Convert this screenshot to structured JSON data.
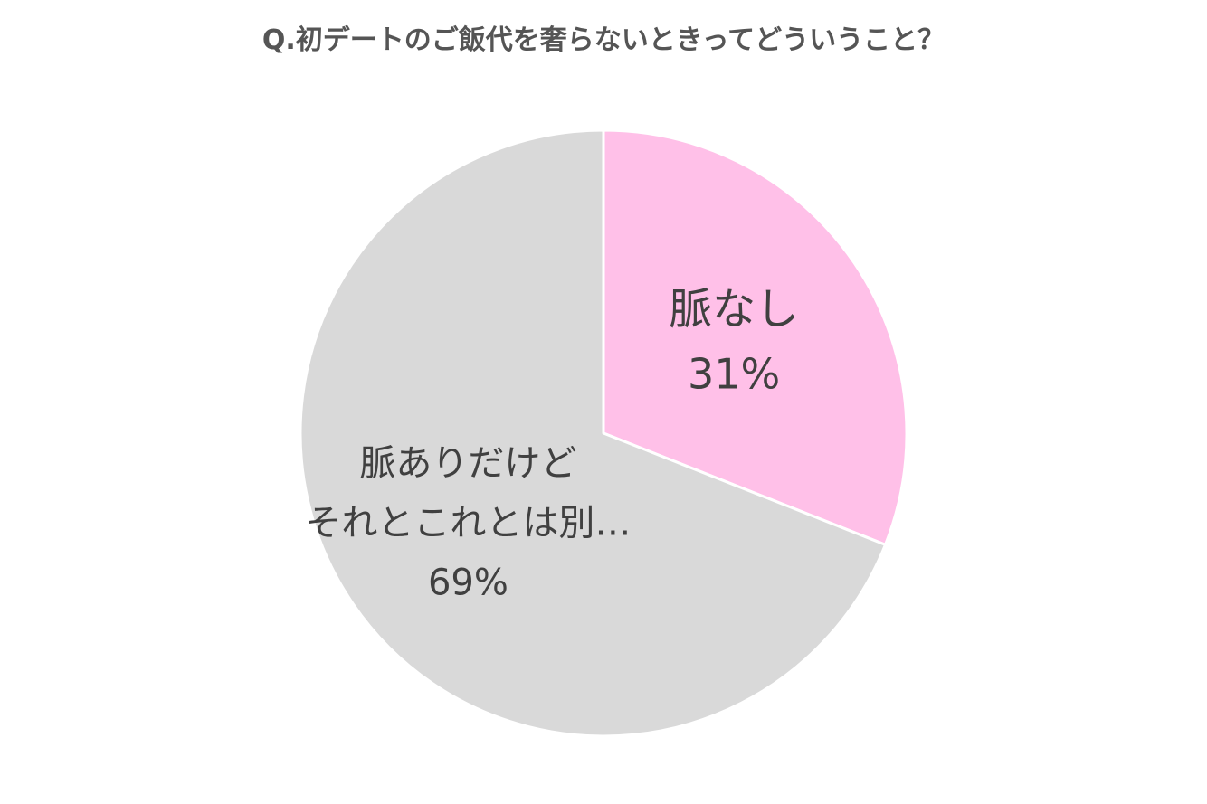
{
  "chart_data": {
    "type": "pie",
    "title": "Q.初デートのご飯代を奢らないときってどういうこと？",
    "slices": [
      {
        "label_lines": [
          "脈なし"
        ],
        "value": 31,
        "value_label": "31%",
        "color": "#ffc0e8"
      },
      {
        "label_lines": [
          "脈ありだけど",
          "それとこれとは別…"
        ],
        "value": 69,
        "value_label": "69%",
        "color": "#d9d9d9"
      }
    ],
    "start": "12 o'clock",
    "direction": "clockwise",
    "slice_border_color": "#ffffff",
    "legend": "none"
  }
}
